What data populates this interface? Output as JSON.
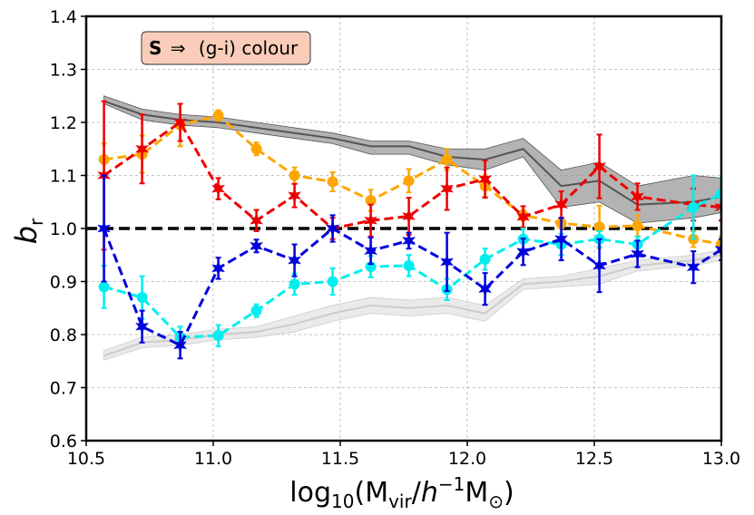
{
  "chart_data": {
    "type": "line",
    "title": "",
    "xlabel_main": "log",
    "xlabel_sub": "10",
    "xlabel_paren_open": "(M",
    "xlabel_vir": "vir",
    "xlabel_slash": "/",
    "xlabel_h": "h",
    "xlabel_exp": "−1",
    "xlabel_m": "M",
    "xlabel_sun": "⊙",
    "xlabel_close": ")",
    "ylabel_main": "b",
    "ylabel_sub": "r",
    "xlim": [
      10.5,
      13.0
    ],
    "ylim": [
      0.6,
      1.4
    ],
    "xticks": [
      10.5,
      11.0,
      11.5,
      12.0,
      12.5,
      13.0
    ],
    "xtick_labels": [
      "10.5",
      "11.0",
      "11.5",
      "12.0",
      "12.5",
      "13.0"
    ],
    "yticks": [
      0.6,
      0.7,
      0.8,
      0.9,
      1.0,
      1.1,
      1.2,
      1.3,
      1.4
    ],
    "ytick_labels": [
      "0.6",
      "0.7",
      "0.8",
      "0.9",
      "1.0",
      "1.1",
      "1.2",
      "1.3",
      "1.4"
    ],
    "grid": true,
    "annotation": {
      "bold": "S",
      "arrow": "⇒",
      "text": "(g-i) colour",
      "bg": "#f9cdb9"
    },
    "reference_line": 1.0,
    "x": [
      10.57,
      10.72,
      10.87,
      11.02,
      11.17,
      11.32,
      11.47,
      11.62,
      11.77,
      11.92,
      12.07,
      12.22,
      12.37,
      12.52,
      12.67,
      12.89,
      13.0
    ],
    "bands": [
      {
        "name": "upper band",
        "color": "#555555",
        "fill": "#999999",
        "x": [
          10.57,
          10.72,
          10.87,
          11.02,
          11.17,
          11.32,
          11.47,
          11.62,
          11.77,
          11.92,
          12.07,
          12.22,
          12.37,
          12.52,
          12.67,
          12.89,
          13.0
        ],
        "mid": [
          1.24,
          1.215,
          1.205,
          1.2,
          1.19,
          1.18,
          1.17,
          1.155,
          1.155,
          1.135,
          1.13,
          1.15,
          1.08,
          1.09,
          1.045,
          1.05,
          1.06
        ],
        "lo": [
          1.235,
          1.205,
          1.195,
          1.19,
          1.18,
          1.17,
          1.16,
          1.14,
          1.14,
          1.12,
          1.11,
          1.135,
          1.04,
          1.05,
          1.01,
          1.02,
          1.03
        ],
        "hi": [
          1.25,
          1.225,
          1.215,
          1.21,
          1.2,
          1.19,
          1.18,
          1.165,
          1.165,
          1.15,
          1.15,
          1.17,
          1.11,
          1.125,
          1.08,
          1.1,
          1.095
        ]
      },
      {
        "name": "lower band",
        "color": "#cccccc",
        "fill": "#e3e3e3",
        "x": [
          10.57,
          10.72,
          10.87,
          11.02,
          11.17,
          11.32,
          11.47,
          11.62,
          11.77,
          11.92,
          12.07,
          12.22,
          12.37,
          12.52,
          12.67,
          12.89,
          13.0
        ],
        "mid": [
          0.76,
          0.785,
          0.79,
          0.8,
          0.805,
          0.82,
          0.84,
          0.855,
          0.85,
          0.855,
          0.84,
          0.895,
          0.9,
          0.91,
          0.93,
          0.94,
          0.95
        ],
        "lo": [
          0.752,
          0.775,
          0.78,
          0.79,
          0.795,
          0.805,
          0.825,
          0.84,
          0.835,
          0.84,
          0.825,
          0.885,
          0.89,
          0.895,
          0.92,
          0.93,
          0.94
        ],
        "hi": [
          0.77,
          0.795,
          0.8,
          0.81,
          0.815,
          0.835,
          0.855,
          0.87,
          0.865,
          0.87,
          0.855,
          0.905,
          0.91,
          0.925,
          0.94,
          0.95,
          0.96
        ]
      }
    ],
    "series": [
      {
        "name": "orange",
        "color": "#ffa500",
        "marker": "circle",
        "x": [
          10.57,
          10.72,
          10.87,
          11.02,
          11.17,
          11.32,
          11.47,
          11.62,
          11.77,
          11.92,
          12.07,
          12.22,
          12.37,
          12.52,
          12.67,
          12.89,
          13.0
        ],
        "values": [
          1.13,
          1.14,
          1.195,
          1.213,
          1.15,
          1.1,
          1.088,
          1.053,
          1.09,
          1.13,
          1.08,
          1.025,
          1.01,
          1.003,
          1.005,
          0.98,
          0.97
        ],
        "err": [
          0.03,
          0.035,
          0.04,
          0.01,
          0.012,
          0.015,
          0.018,
          0.02,
          0.022,
          0.02,
          0.02,
          0.01,
          0.01,
          0.04,
          0.02,
          0.015,
          0.015
        ]
      },
      {
        "name": "red",
        "color": "#ee0000",
        "marker": "star",
        "x": [
          10.57,
          10.72,
          10.87,
          11.02,
          11.17,
          11.32,
          11.47,
          11.62,
          11.77,
          11.92,
          12.07,
          12.22,
          12.37,
          12.52,
          12.67,
          12.89,
          13.0
        ],
        "values": [
          1.1,
          1.15,
          1.2,
          1.075,
          1.015,
          1.062,
          1.0,
          1.015,
          1.023,
          1.075,
          1.093,
          1.022,
          1.045,
          1.117,
          1.06,
          1.045,
          1.04
        ],
        "err": [
          0.14,
          0.065,
          0.035,
          0.02,
          0.02,
          0.022,
          0.02,
          0.03,
          0.035,
          0.04,
          0.035,
          0.02,
          0.025,
          0.06,
          0.025,
          0.03,
          0.025
        ]
      },
      {
        "name": "cyan",
        "color": "#00eeee",
        "marker": "circle",
        "x": [
          10.57,
          10.72,
          10.87,
          11.02,
          11.17,
          11.32,
          11.47,
          11.62,
          11.77,
          11.92,
          12.07,
          12.22,
          12.37,
          12.52,
          12.67,
          12.89,
          13.0
        ],
        "values": [
          0.89,
          0.87,
          0.795,
          0.798,
          0.845,
          0.895,
          0.9,
          0.928,
          0.93,
          0.885,
          0.942,
          0.98,
          0.97,
          0.98,
          0.97,
          1.04,
          1.065
        ],
        "err": [
          0.04,
          0.04,
          0.02,
          0.02,
          0.012,
          0.02,
          0.025,
          0.02,
          0.02,
          0.02,
          0.02,
          0.02,
          0.02,
          0.015,
          0.015,
          0.06,
          0.03
        ]
      },
      {
        "name": "blue",
        "color": "#0000dd",
        "marker": "star",
        "x": [
          10.57,
          10.72,
          10.87,
          11.02,
          11.17,
          11.32,
          11.47,
          11.62,
          11.77,
          11.92,
          12.07,
          12.22,
          12.37,
          12.52,
          12.67,
          12.89,
          13.0
        ],
        "values": [
          1.0,
          0.815,
          0.78,
          0.925,
          0.967,
          0.94,
          1.0,
          0.958,
          0.977,
          0.937,
          0.886,
          0.956,
          0.98,
          0.93,
          0.952,
          0.927,
          0.96
        ],
        "err": [
          0.1,
          0.03,
          0.025,
          0.02,
          0.012,
          0.03,
          0.025,
          0.025,
          0.015,
          0.055,
          0.03,
          0.025,
          0.04,
          0.05,
          0.025,
          0.03,
          0.02
        ]
      }
    ]
  }
}
